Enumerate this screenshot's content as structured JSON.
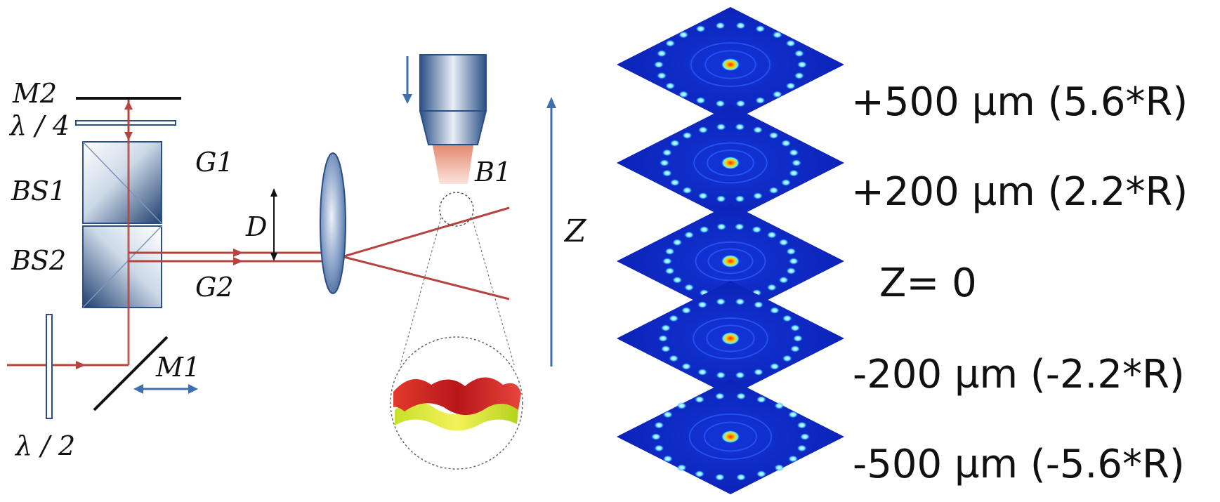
{
  "optics": {
    "mirror_m2": "M2",
    "quarter_wave": "λ / 4",
    "beam_splitter_1": "BS1",
    "beam_splitter_2": "BS2",
    "beam_g1": "G1",
    "beam_g2": "G2",
    "separation": "D",
    "bead": "B1",
    "mirror_m1": "M1",
    "half_wave": "λ / 2",
    "axis": "Z"
  },
  "planes": [
    {
      "label": "+500 µm  (5.6*R)"
    },
    {
      "label": "+200 µm  (2.2*R)"
    },
    {
      "label": "Z= 0"
    },
    {
      "label": "-200 µm (-2.2*R)"
    },
    {
      "label": "-500 µm (-5.6*R)"
    }
  ],
  "colors": {
    "beam": "#b5433f",
    "arrow_blue": "#3f6fad",
    "plane_bg": "#0a1fb0",
    "spot": "#9ff0ff"
  }
}
